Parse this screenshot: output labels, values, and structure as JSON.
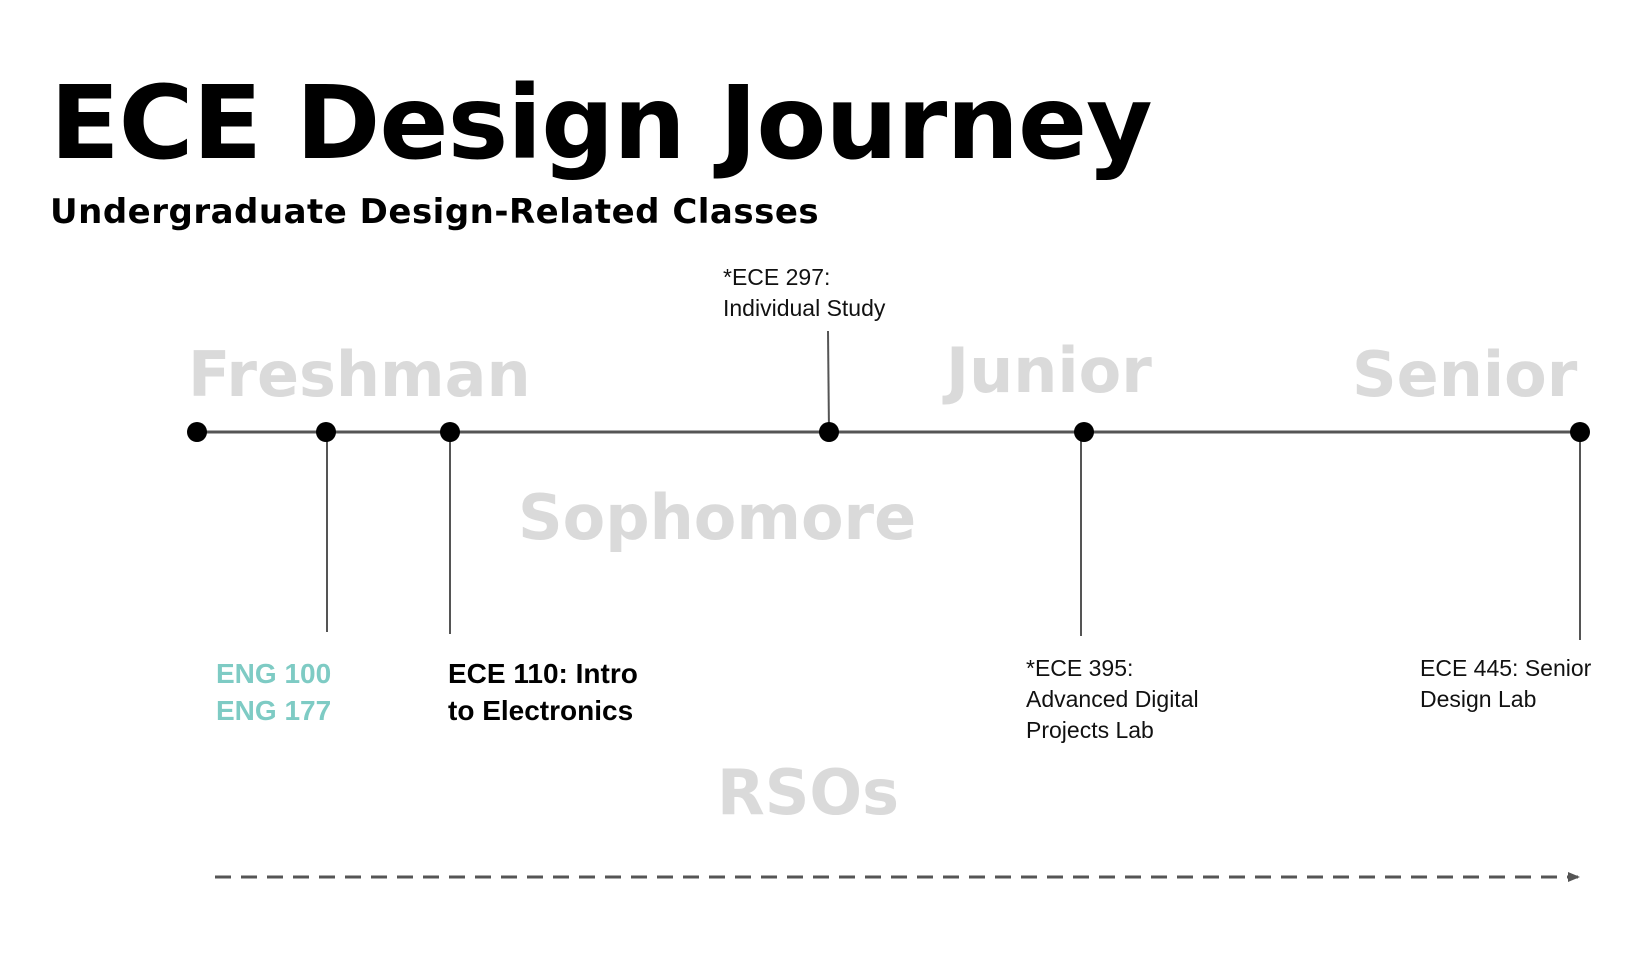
{
  "header": {
    "title": "ECE Design Journey",
    "subtitle": "Undergraduate Design-Related Classes"
  },
  "years": {
    "freshman": "Freshman",
    "sophomore": "Sophomore",
    "junior": "Junior",
    "senior": "Senior"
  },
  "courses": {
    "ece297": [
      "*ECE 297:",
      "Individual Study"
    ],
    "eng": [
      "ENG 100",
      "ENG 177"
    ],
    "ece110": [
      "ECE 110: Intro",
      "to Electronics"
    ],
    "ece395": [
      "*ECE 395:",
      "Advanced Digital",
      "Projects Lab"
    ],
    "ece445": [
      "ECE 445: Senior",
      "Design Lab"
    ]
  },
  "rso": {
    "label": "RSOs"
  },
  "colors": {
    "line": "#555555",
    "node": "#000000",
    "year_text": "#dadada",
    "teal_text": "#7ecbc4"
  }
}
